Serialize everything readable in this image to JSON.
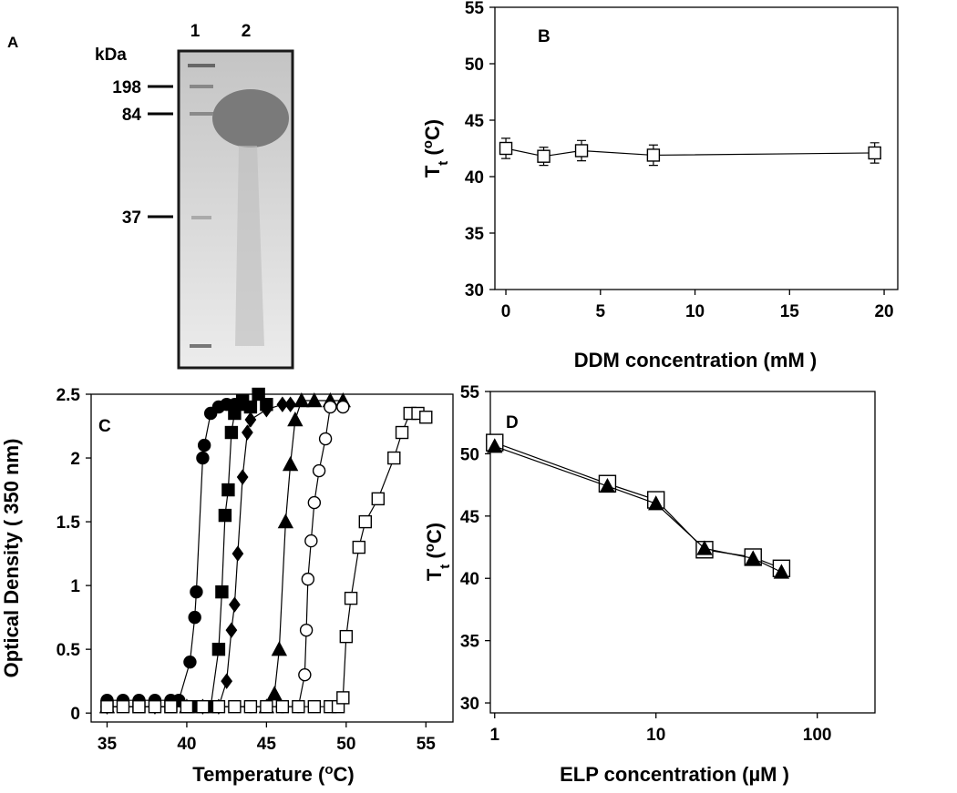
{
  "gel": {
    "label": "A",
    "unit": "kDa",
    "lanes": [
      "1",
      "2"
    ],
    "markers": [
      "198",
      "84",
      "37"
    ]
  },
  "chart_data": [
    {
      "type": "line",
      "label": "B",
      "xlabel": [
        {
          "text": "DDM concentration (mM )"
        }
      ],
      "ylabel": [
        {
          "text": "T"
        },
        {
          "text": "t",
          "script": "sub"
        },
        {
          "text": " ("
        },
        {
          "text": "o",
          "script": "sup"
        },
        {
          "text": "C)"
        }
      ],
      "xlim": [
        -0.58,
        20.72
      ],
      "ylim": [
        30,
        55
      ],
      "xticks": [
        0,
        5,
        10,
        15,
        20
      ],
      "yticks": [
        30,
        35,
        40,
        45,
        50,
        55
      ],
      "series": [
        {
          "color": "#000000",
          "marker": "square",
          "filled": false,
          "x": [
            0,
            2,
            4,
            7.8,
            19.5
          ],
          "values": [
            42.5,
            41.8,
            42.3,
            41.9,
            42.1
          ],
          "errors": [
            0.9,
            0.8,
            0.9,
            0.9,
            0.9
          ]
        }
      ]
    },
    {
      "type": "line",
      "label": "C",
      "xlabel": [
        {
          "text": "Temperature ("
        },
        {
          "text": "o",
          "script": "sup"
        },
        {
          "text": "C)"
        }
      ],
      "ylabel": [
        {
          "text": "Optical Density  ( 350 nm)"
        }
      ],
      "xlim": [
        34,
        56.7
      ],
      "ylim": [
        -0.07,
        2.5
      ],
      "xticks": [
        35,
        40,
        45,
        50,
        55
      ],
      "yticks": [
        0,
        0.5,
        1,
        1.5,
        2,
        2.5
      ],
      "series": [
        {
          "color": "#000000",
          "marker": "circle",
          "filled": true,
          "x": [
            35,
            36,
            37,
            38,
            39,
            39.5,
            40.2,
            40.5,
            40.6,
            41,
            41.1,
            41.5,
            42,
            42.5,
            43,
            43.5
          ],
          "values": [
            0.1,
            0.1,
            0.1,
            0.1,
            0.1,
            0.1,
            0.4,
            0.75,
            0.95,
            2.0,
            2.1,
            2.35,
            2.4,
            2.42,
            2.42,
            2.42
          ]
        },
        {
          "color": "#000000",
          "marker": "square",
          "filled": true,
          "x": [
            35,
            37,
            39,
            40.5,
            41.5,
            42,
            42.2,
            42.4,
            42.6,
            42.8,
            43,
            43.5,
            44,
            44.5,
            45
          ],
          "values": [
            0.05,
            0.05,
            0.05,
            0.05,
            0.05,
            0.5,
            0.95,
            1.55,
            1.75,
            2.2,
            2.35,
            2.45,
            2.4,
            2.5,
            2.42
          ]
        },
        {
          "color": "#000000",
          "marker": "diamond",
          "filled": true,
          "x": [
            35,
            38,
            41,
            42,
            42.5,
            42.8,
            43,
            43.2,
            43.5,
            43.8,
            44,
            45,
            46,
            46.5
          ],
          "values": [
            0.05,
            0.05,
            0.05,
            0.05,
            0.25,
            0.65,
            0.85,
            1.25,
            1.85,
            2.2,
            2.3,
            2.38,
            2.42,
            2.42
          ]
        },
        {
          "color": "#000000",
          "marker": "triangle",
          "filled": true,
          "x": [
            35,
            40,
            45,
            45.5,
            45.8,
            46.2,
            46.5,
            46.8,
            47.2,
            48,
            49,
            49.8
          ],
          "values": [
            0.05,
            0.05,
            0.05,
            0.15,
            0.5,
            1.5,
            1.95,
            2.3,
            2.45,
            2.45,
            2.45,
            2.45
          ]
        },
        {
          "color": "#000000",
          "marker": "circle",
          "filled": false,
          "x": [
            35,
            40,
            44,
            46,
            47,
            47.4,
            47.5,
            47.6,
            47.8,
            48,
            48.3,
            48.7,
            49,
            49.8
          ],
          "values": [
            0.05,
            0.05,
            0.05,
            0.05,
            0.05,
            0.3,
            0.65,
            1.05,
            1.35,
            1.65,
            1.9,
            2.15,
            2.4,
            2.4
          ]
        },
        {
          "color": "#000000",
          "marker": "square",
          "filled": false,
          "x": [
            35,
            36,
            37,
            38,
            39,
            40,
            41,
            42,
            43,
            44,
            45,
            46,
            47,
            48,
            49,
            49.5,
            49.8,
            50,
            50.3,
            50.8,
            51.2,
            52,
            53,
            53.5,
            54,
            54.5,
            55
          ],
          "values": [
            0.05,
            0.05,
            0.05,
            0.05,
            0.05,
            0.05,
            0.05,
            0.05,
            0.05,
            0.05,
            0.05,
            0.05,
            0.05,
            0.05,
            0.05,
            0.05,
            0.12,
            0.6,
            0.9,
            1.3,
            1.5,
            1.68,
            2.0,
            2.2,
            2.35,
            2.35,
            2.32
          ]
        }
      ]
    },
    {
      "type": "line",
      "label": "D",
      "xscale": "log",
      "xlabel": [
        {
          "text": "ELP concentration (µM )"
        }
      ],
      "ylabel": [
        {
          "text": "T"
        },
        {
          "text": "t",
          "script": "sub"
        },
        {
          "text": " ("
        },
        {
          "text": "o",
          "script": "sup"
        },
        {
          "text": "C)"
        }
      ],
      "xlim": [
        0.94,
        228
      ],
      "ylim": [
        29.2,
        55
      ],
      "xticks": [
        1,
        10,
        100
      ],
      "yticks": [
        30,
        35,
        40,
        45,
        50,
        55
      ],
      "series": [
        {
          "color": "#000000",
          "marker": "square",
          "filled": false,
          "size": 9,
          "x": [
            1,
            5,
            10,
            20,
            40,
            60
          ],
          "values": [
            50.9,
            47.6,
            46.3,
            42.3,
            41.7,
            40.8
          ]
        },
        {
          "color": "#000000",
          "marker": "triangle",
          "filled": true,
          "x": [
            1,
            5,
            10,
            20,
            40,
            60
          ],
          "values": [
            50.6,
            47.4,
            46.0,
            42.4,
            41.6,
            40.5
          ]
        }
      ]
    }
  ]
}
